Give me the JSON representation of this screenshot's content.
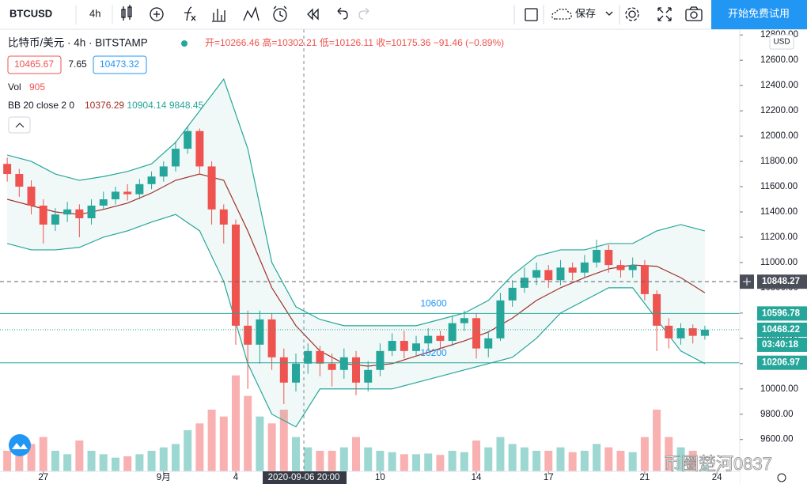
{
  "toolbar": {
    "symbol": "BTCUSD",
    "interval": "4h",
    "save": "保存",
    "trial": "开始免费试用"
  },
  "legend": {
    "title": "比特币/美元 · 4h · BITSTAMP",
    "ohlc": [
      "开=10266.46",
      "高=10302.21",
      "低=10126.11",
      "收=10175.36",
      "−91.46 (−0.89%)"
    ],
    "bid": "10465.67",
    "spread": "7.65",
    "ask": "10473.32",
    "vol_name": "Vol",
    "vol_value": "905",
    "bb_name": "BB 20 close 2 0",
    "bb_values": [
      "10376.29",
      "10904.14",
      "9848.45"
    ]
  },
  "currency": "USD",
  "watermark": "币圈楚河0837",
  "chart_data": {
    "type": "candlestick",
    "up_color": "#26a69a",
    "down_color": "#ef5350",
    "xlim": [
      -1.8,
      28.95
    ],
    "ylim": [
      9348,
      12845
    ],
    "xticks": [
      {
        "value": 0,
        "label": "27"
      },
      {
        "value": 5,
        "label": "9月"
      },
      {
        "value": 8,
        "label": "4"
      },
      {
        "value": 14,
        "label": "10"
      },
      {
        "value": 18,
        "label": "14"
      },
      {
        "value": 21,
        "label": "17"
      },
      {
        "value": 25,
        "label": "21"
      },
      {
        "value": 28,
        "label": "24"
      }
    ],
    "yticks": [
      {
        "value": 9600,
        "label": "9600.00"
      },
      {
        "value": 9800,
        "label": "9800.00"
      },
      {
        "value": 10000,
        "label": "10000.00"
      },
      {
        "value": 10200,
        "label": "10200.00"
      },
      {
        "value": 10400,
        "label": "10400.00"
      },
      {
        "value": 10600,
        "label": "10600.00"
      },
      {
        "value": 10800,
        "label": "10800.00"
      },
      {
        "value": 11000,
        "label": "11000.00"
      },
      {
        "value": 11200,
        "label": "11200.00"
      },
      {
        "value": 11400,
        "label": "11400.00"
      },
      {
        "value": 11600,
        "label": "11600.00"
      },
      {
        "value": 11800,
        "label": "11800.00"
      },
      {
        "value": 12000,
        "label": "12000.00"
      },
      {
        "value": 12200,
        "label": "12200.00"
      },
      {
        "value": 12400,
        "label": "12400.00"
      },
      {
        "value": 12600,
        "label": "12600.00"
      },
      {
        "value": 12800,
        "label": "12800.00"
      }
    ],
    "grid": false,
    "crosshair_x": 10.83,
    "crosshair_label": "2020-09-06  20:00",
    "x": [
      -1.5,
      -1,
      -0.5,
      0,
      0.5,
      1,
      1.5,
      2,
      2.5,
      3,
      3.5,
      4,
      4.5,
      5,
      5.5,
      6,
      6.5,
      7,
      7.5,
      8,
      8.5,
      9,
      9.5,
      10,
      10.5,
      11,
      11.5,
      12,
      12.5,
      13,
      13.5,
      14,
      14.5,
      15,
      15.5,
      16,
      16.5,
      17,
      17.5,
      18,
      18.5,
      19,
      19.5,
      20,
      20.5,
      21,
      21.5,
      22,
      22.5,
      23,
      23.5,
      24,
      24.5,
      25,
      25.5,
      26,
      26.5,
      27,
      27.5
    ],
    "open": [
      11780,
      11700,
      11600,
      11450,
      11300,
      11380,
      11420,
      11350,
      11450,
      11500,
      11560,
      11540,
      11620,
      11680,
      11760,
      11900,
      12040,
      11760,
      11420,
      11300,
      10500,
      10350,
      10550,
      10250,
      10050,
      10200,
      10300,
      10200,
      10150,
      10250,
      10050,
      10150,
      10300,
      10380,
      10300,
      10360,
      10420,
      10380,
      10520,
      10560,
      10320,
      10400,
      10700,
      10800,
      10880,
      10940,
      10860,
      10960,
      10920,
      11000,
      11100,
      10980,
      10940,
      10980,
      10750,
      10500,
      10400,
      10480,
      10420
    ],
    "high": [
      11830,
      11740,
      11650,
      11500,
      11430,
      11480,
      11460,
      11500,
      11560,
      11600,
      11620,
      11660,
      11720,
      11800,
      11960,
      12080,
      12060,
      11800,
      11460,
      11340,
      10620,
      10620,
      10600,
      10320,
      10280,
      10360,
      10340,
      10280,
      10320,
      10300,
      10220,
      10360,
      10440,
      10460,
      10420,
      10480,
      10460,
      10580,
      10620,
      10600,
      10460,
      10760,
      10860,
      10960,
      11000,
      10980,
      11020,
      11000,
      11060,
      11180,
      11140,
      11020,
      11040,
      11020,
      10780,
      10560,
      10520,
      10510,
      10500
    ],
    "low": [
      11640,
      11520,
      11380,
      11150,
      11250,
      11320,
      11200,
      11300,
      11420,
      11460,
      11490,
      11500,
      11580,
      11640,
      11720,
      11860,
      11700,
      11300,
      11150,
      10350,
      10000,
      10200,
      10150,
      9880,
      9980,
      10120,
      10100,
      10020,
      10080,
      9950,
      9980,
      10100,
      10260,
      10240,
      10260,
      10300,
      10320,
      10340,
      10460,
      10240,
      10250,
      10380,
      10650,
      10760,
      10820,
      10800,
      10820,
      10860,
      10880,
      10960,
      10920,
      10880,
      10880,
      10700,
      10300,
      10320,
      10350,
      10360,
      10390
    ],
    "close": [
      11700,
      11600,
      11450,
      11300,
      11380,
      11420,
      11350,
      11450,
      11500,
      11560,
      11540,
      11620,
      11680,
      11760,
      11900,
      12040,
      11760,
      11420,
      11300,
      10500,
      10350,
      10550,
      10250,
      10050,
      10200,
      10300,
      10200,
      10150,
      10250,
      10050,
      10150,
      10300,
      10380,
      10300,
      10360,
      10420,
      10380,
      10520,
      10560,
      10320,
      10400,
      10700,
      10800,
      10880,
      10940,
      10860,
      10960,
      10920,
      11000,
      11100,
      10980,
      10940,
      10980,
      10750,
      10500,
      10400,
      10480,
      10420,
      10468.22
    ],
    "volume": [
      3000,
      2500,
      4000,
      5000,
      3000,
      2500,
      4500,
      3000,
      2500,
      2000,
      2200,
      2500,
      3000,
      3500,
      4000,
      6000,
      7000,
      9000,
      8000,
      14000,
      11000,
      8000,
      7000,
      9000,
      5000,
      3500,
      3000,
      3000,
      3500,
      5000,
      3500,
      3000,
      2800,
      2500,
      2500,
      2600,
      2400,
      3000,
      2800,
      4500,
      3500,
      5000,
      4000,
      3500,
      3000,
      3000,
      3500,
      2800,
      3000,
      4000,
      3500,
      3000,
      2800,
      5000,
      9000,
      5000,
      3500,
      3000,
      905
    ],
    "volume_lim": [
      0,
      15000
    ],
    "bands": {
      "x": [
        -1.5,
        -0.5,
        0.5,
        1.5,
        2.5,
        3.5,
        4.5,
        5.5,
        6.5,
        7.5,
        8.5,
        9.5,
        10.5,
        11.5,
        12.5,
        13.5,
        14.5,
        15.5,
        16.5,
        17.5,
        18.5,
        19.5,
        20.5,
        21.5,
        22.5,
        23.5,
        24.5,
        25.5,
        26.5,
        27.5
      ],
      "upper": [
        11850,
        11800,
        11700,
        11650,
        11680,
        11720,
        11780,
        11950,
        12200,
        12450,
        11900,
        11000,
        10650,
        10550,
        10500,
        10500,
        10500,
        10500,
        10550,
        10600,
        10700,
        10900,
        11050,
        11100,
        11100,
        11150,
        11150,
        11250,
        11300,
        11250
      ],
      "middle": [
        11500,
        11450,
        11400,
        11380,
        11420,
        11470,
        11550,
        11650,
        11700,
        11650,
        11250,
        10800,
        10500,
        10300,
        10200,
        10180,
        10200,
        10260,
        10320,
        10380,
        10450,
        10560,
        10700,
        10800,
        10880,
        10950,
        10980,
        10970,
        10880,
        10760
      ],
      "lower": [
        11150,
        11100,
        11100,
        11120,
        11200,
        11250,
        11320,
        11380,
        11250,
        10850,
        10200,
        9800,
        9700,
        10000,
        10000,
        10000,
        10000,
        10050,
        10100,
        10150,
        10200,
        10250,
        10400,
        10600,
        10700,
        10800,
        10800,
        10550,
        10300,
        10200
      ],
      "band_color": "#26a69a",
      "middle_color": "#a0302a"
    },
    "levels": [
      {
        "value": 10848.27,
        "style": "dashed",
        "color": "#5d606b"
      },
      {
        "value": 10596.78,
        "style": "solid",
        "color": "#26a69a",
        "name": "10600"
      },
      {
        "value": 10468.22,
        "style": "dotted",
        "color": "#26a69a"
      },
      {
        "value": 10206.97,
        "style": "solid",
        "color": "#26a69a",
        "name": "10200"
      }
    ],
    "countdown": "03:40:18"
  }
}
